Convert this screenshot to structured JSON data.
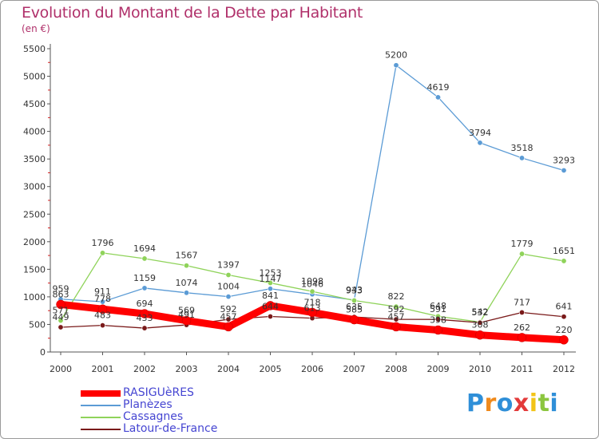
{
  "chart_data": {
    "type": "line",
    "title": "Evolution du Montant de la Dette par Habitant",
    "subtitle": "(en €)",
    "xlabel": "",
    "ylabel": "",
    "categories": [
      "2000",
      "2001",
      "2002",
      "2003",
      "2004",
      "2005",
      "2006",
      "2007",
      "2008",
      "2009",
      "2010",
      "2011",
      "2012"
    ],
    "ylim": [
      0,
      5500
    ],
    "yticks": [
      0,
      500,
      1000,
      1500,
      2000,
      2500,
      3000,
      3500,
      4000,
      4500,
      5000,
      5500
    ],
    "grid": false,
    "legend_position": "bottom-left",
    "series": [
      {
        "name": "RASIGUèRES",
        "color": "#ff0000",
        "values": [
          863,
          778,
          694,
          569,
          457,
          841,
          718,
          585,
          457,
          398,
          308,
          262,
          220
        ],
        "labels": [
          "863",
          "778",
          "694",
          "569",
          "457",
          "841",
          "718",
          "585",
          "457",
          "398",
          "308",
          "262",
          "220"
        ]
      },
      {
        "name": "Planèzes",
        "color": "#5b9bd5",
        "values": [
          959,
          911,
          1159,
          1074,
          1004,
          1147,
          1046,
          943,
          5200,
          4619,
          3794,
          3518,
          3293
        ],
        "labels": [
          "959",
          "911",
          "1159",
          "1074",
          "1004",
          "1147",
          "1046",
          "943",
          "5200",
          "4619",
          "3794",
          "3518",
          "3293"
        ]
      },
      {
        "name": "Cassagnes",
        "color": "#8fd35a",
        "values": [
          571,
          1796,
          1694,
          1567,
          1397,
          1253,
          1098,
          933,
          822,
          648,
          542,
          1779,
          1651
        ],
        "labels": [
          "571",
          "1796",
          "1694",
          "1567",
          "1397",
          "1253",
          "1098",
          "933",
          "822",
          "648",
          "542",
          "1779",
          "1651"
        ]
      },
      {
        "name": "Latour-de-France",
        "color": "#7a1a1a",
        "values": [
          449,
          483,
          433,
          491,
          592,
          644,
          613,
          635,
          592,
          591,
          532,
          717,
          641
        ],
        "labels": [
          "449",
          "483",
          "433",
          "491",
          "592",
          "644",
          "613",
          "635",
          "592",
          "591",
          "532",
          "717",
          "641"
        ]
      }
    ]
  },
  "branding": {
    "logo_text": "Proxiti",
    "logo_letters": [
      "P",
      "r",
      "o",
      "x",
      "i",
      "t",
      "i"
    ],
    "logo_colors": [
      "#2f8fd8",
      "#f08a1c",
      "#2f8fd8",
      "#e33a3a",
      "#f2c418",
      "#8cc63f",
      "#2f8fd8"
    ]
  }
}
